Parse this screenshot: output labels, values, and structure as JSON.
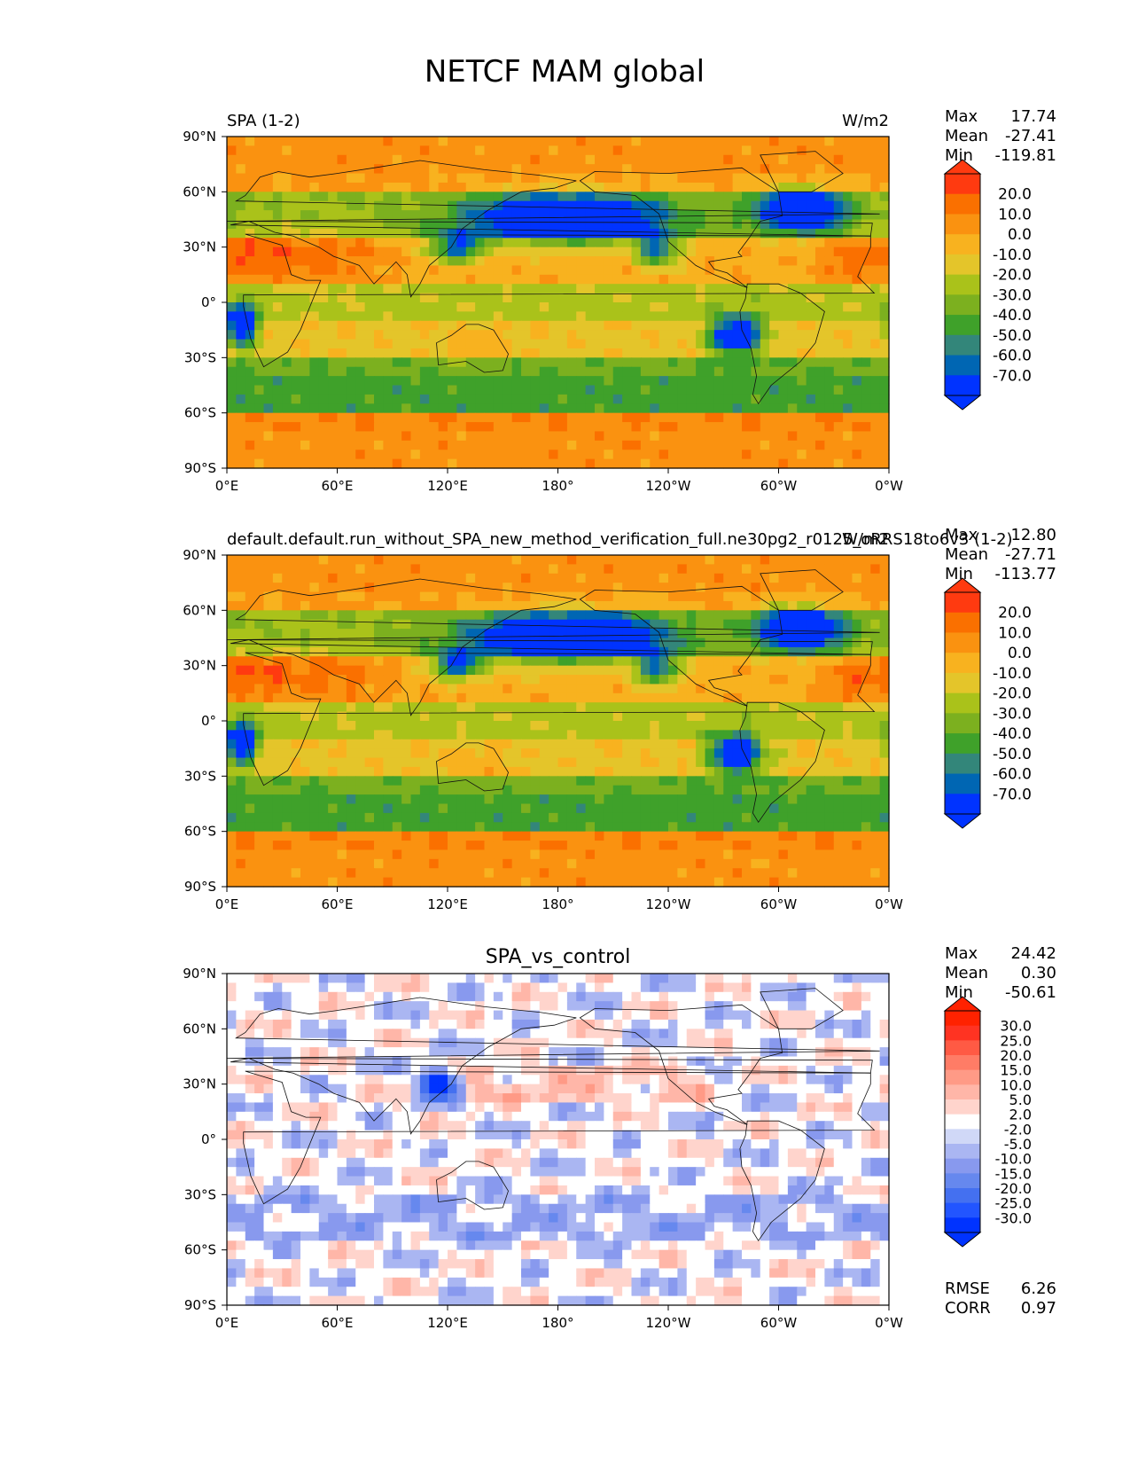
{
  "figure_title": "NETCF MAM global",
  "colors": {
    "main_cmap": [
      "#0033ff",
      "#0066b3",
      "#33867a",
      "#3fa12a",
      "#7cb01f",
      "#aac21a",
      "#e4c52a",
      "#f8b21f",
      "#fa9210",
      "#fa7000",
      "#ff3a10"
    ],
    "diff_cmap": [
      "#0033ff",
      "#2255ff",
      "#4470f0",
      "#6688ee",
      "#8899ee",
      "#aab6f2",
      "#d0d8f7",
      "#ffffff",
      "#ffd4cc",
      "#ffb6a8",
      "#ff9a86",
      "#ff7c66",
      "#ff5a44",
      "#ff3322",
      "#ff2200"
    ]
  },
  "chart_data": [
    {
      "type": "heatmap",
      "map": "global-equirectangular",
      "left_title": "SPA (1-2)",
      "right_title": "W/m2",
      "center_title": "",
      "x": [
        "0°E",
        "60°E",
        "120°E",
        "180°",
        "120°W",
        "60°W",
        "0°W"
      ],
      "y": [
        "90°N",
        "60°N",
        "30°N",
        "0°",
        "30°S",
        "60°S",
        "90°S"
      ],
      "stats": [
        {
          "label": "Max",
          "value": "17.74"
        },
        {
          "label": "Mean",
          "value": "-27.41"
        },
        {
          "label": "Min",
          "value": "-119.81"
        }
      ],
      "colorbar": {
        "levels": [
          "20.0",
          "10.0",
          "0.0",
          "-10.0",
          "-20.0",
          "-30.0",
          "-40.0",
          "-50.0",
          "-60.0",
          "-70.0"
        ],
        "extend": "both",
        "palette": "main"
      },
      "extra_stats": []
    },
    {
      "type": "heatmap",
      "map": "global-equirectangular",
      "left_title": "default.default.run_without_SPA_new_method_verification_full.ne30pg2_r0125_oRRS18to6v3 (1-2)",
      "right_title": "W/m2",
      "center_title": "",
      "x": [
        "0°E",
        "60°E",
        "120°E",
        "180°",
        "120°W",
        "60°W",
        "0°W"
      ],
      "y": [
        "90°N",
        "60°N",
        "30°N",
        "0°",
        "30°S",
        "60°S",
        "90°S"
      ],
      "stats": [
        {
          "label": "Max",
          "value": "12.80"
        },
        {
          "label": "Mean",
          "value": "-27.71"
        },
        {
          "label": "Min",
          "value": "-113.77"
        }
      ],
      "colorbar": {
        "levels": [
          "20.0",
          "10.0",
          "0.0",
          "-10.0",
          "-20.0",
          "-30.0",
          "-40.0",
          "-50.0",
          "-60.0",
          "-70.0"
        ],
        "extend": "both",
        "palette": "main"
      },
      "extra_stats": []
    },
    {
      "type": "heatmap",
      "map": "global-equirectangular",
      "left_title": "",
      "right_title": "",
      "center_title": "SPA_vs_control",
      "x": [
        "0°E",
        "60°E",
        "120°E",
        "180°",
        "120°W",
        "60°W",
        "0°W"
      ],
      "y": [
        "90°N",
        "60°N",
        "30°N",
        "0°",
        "30°S",
        "60°S",
        "90°S"
      ],
      "stats": [
        {
          "label": "Max",
          "value": "24.42"
        },
        {
          "label": "Mean",
          "value": "0.30"
        },
        {
          "label": "Min",
          "value": "-50.61"
        }
      ],
      "colorbar": {
        "levels": [
          "30.0",
          "25.0",
          "20.0",
          "15.0",
          "10.0",
          "5.0",
          "2.0",
          "-2.0",
          "-5.0",
          "-10.0",
          "-15.0",
          "-20.0",
          "-25.0",
          "-30.0"
        ],
        "extend": "both",
        "palette": "diff"
      },
      "extra_stats": [
        {
          "label": "RMSE",
          "value": "6.26"
        },
        {
          "label": "CORR",
          "value": "0.97"
        }
      ]
    }
  ]
}
